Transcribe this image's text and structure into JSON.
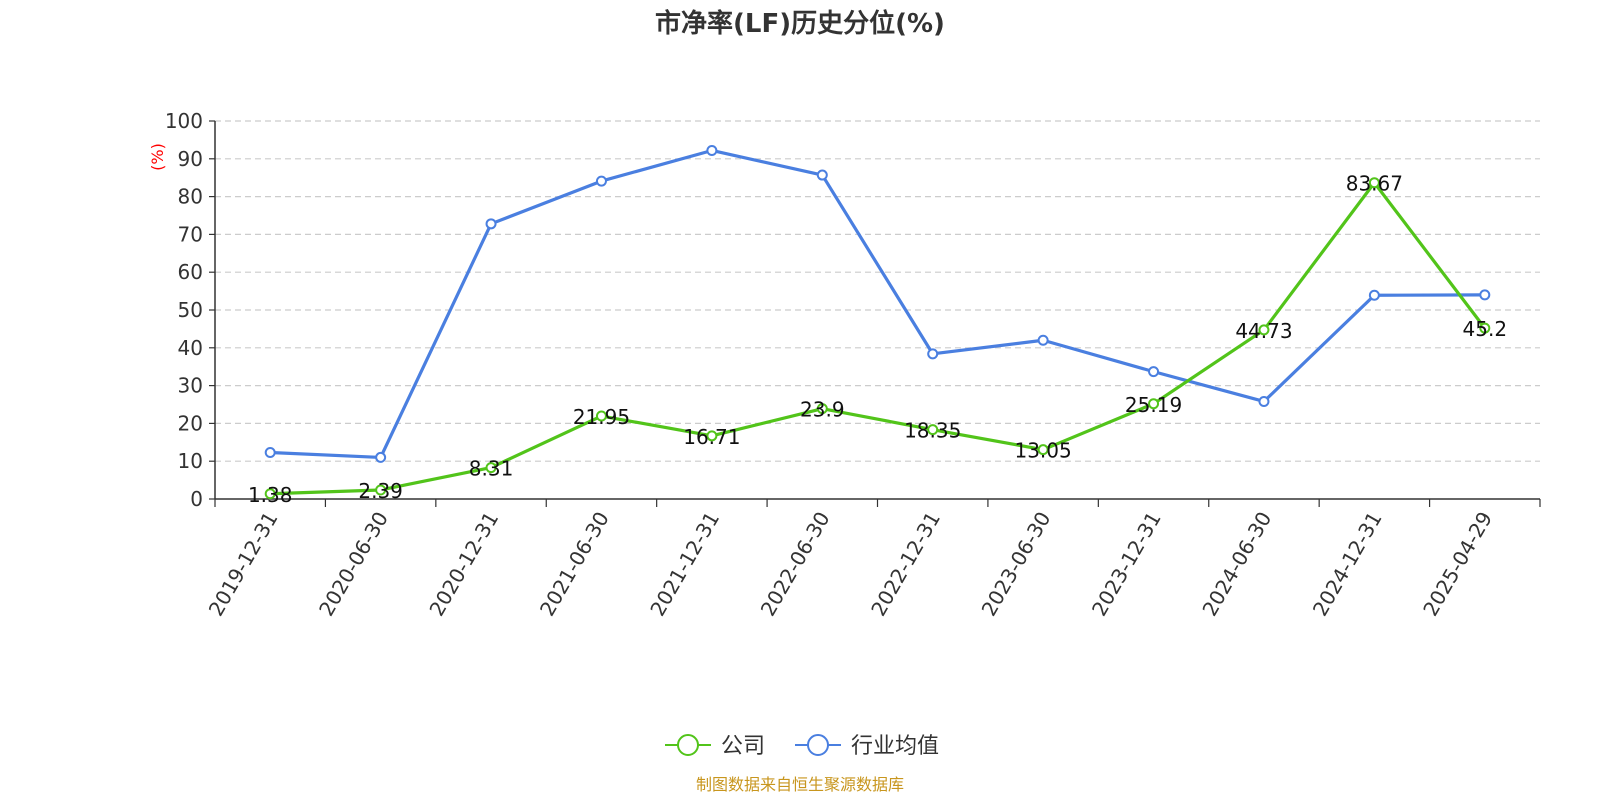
{
  "chart_data": {
    "type": "line",
    "title": "市净率(LF)历史分位(%)",
    "xlabel": "",
    "ylabel": "(%)",
    "ylim": [
      0,
      100
    ],
    "yticks": [
      0,
      10,
      20,
      30,
      40,
      50,
      60,
      70,
      80,
      90,
      100
    ],
    "grid": true,
    "legend_position": "bottom-center",
    "categories": [
      "2019-12-31",
      "2020-06-30",
      "2020-12-31",
      "2021-06-30",
      "2021-12-31",
      "2022-06-30",
      "2022-12-31",
      "2023-06-30",
      "2023-12-31",
      "2024-06-30",
      "2024-12-31",
      "2025-04-29"
    ],
    "series": [
      {
        "name": "公司",
        "color": "#52c41a",
        "values": [
          1.38,
          2.39,
          8.31,
          21.95,
          16.71,
          23.9,
          18.35,
          13.05,
          25.19,
          44.73,
          83.67,
          45.2
        ],
        "labels": [
          "1.38",
          "2.39",
          "8.31",
          "21.95",
          "16.71",
          "23.9",
          "18.35",
          "13.05",
          "25.19",
          "44.73",
          "83.67",
          "45.2"
        ]
      },
      {
        "name": "行业均值",
        "color": "#4a7fe0",
        "values": [
          12.3,
          11.0,
          72.8,
          84.1,
          92.2,
          85.7,
          38.4,
          42.0,
          33.7,
          25.8,
          53.9,
          54.0
        ]
      }
    ],
    "source": "制图数据来自恒生聚源数据库",
    "ylabel_color": "#ff0000",
    "source_color": "#c8961e"
  }
}
